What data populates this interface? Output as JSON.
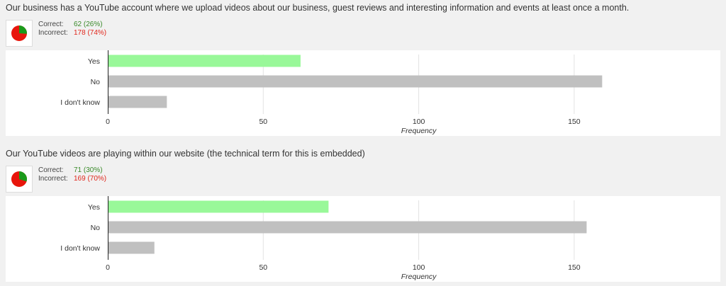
{
  "questions": [
    {
      "title": "Our business has a YouTube account where we upload videos about our business, guest reviews and interesting information and events at least once a month.",
      "score": {
        "correct_label": "Correct:",
        "correct_value": "62 (26%)",
        "incorrect_label": "Incorrect:",
        "incorrect_value": "178 (74%)",
        "correct_fraction": 0.26
      }
    },
    {
      "title": "Our YouTube videos are playing within our website (the technical term for this is embedded)",
      "score": {
        "correct_label": "Correct:",
        "correct_value": "71 (30%)",
        "incorrect_label": "Incorrect:",
        "incorrect_value": "169 (70%)",
        "correct_fraction": 0.3
      }
    }
  ],
  "colors": {
    "correct_bar": "#99f899",
    "other_bar": "#c0c0c0",
    "pie_correct": "#1b9a1b",
    "pie_incorrect": "#e8160c"
  },
  "chart_data": [
    {
      "type": "bar",
      "orientation": "horizontal",
      "categories": [
        "Yes",
        "No",
        "I don't know"
      ],
      "values": [
        62,
        159,
        19
      ],
      "xlabel": "Frequency",
      "ylabel": "",
      "xlim": [
        0,
        197
      ],
      "xticks": [
        0,
        50,
        100,
        150
      ],
      "grid": true,
      "highlight_category": "Yes"
    },
    {
      "type": "bar",
      "orientation": "horizontal",
      "categories": [
        "Yes",
        "No",
        "I don't know"
      ],
      "values": [
        71,
        154,
        15
      ],
      "xlabel": "Frequency",
      "ylabel": "",
      "xlim": [
        0,
        197
      ],
      "xticks": [
        0,
        50,
        100,
        150
      ],
      "grid": true,
      "highlight_category": "Yes"
    }
  ]
}
